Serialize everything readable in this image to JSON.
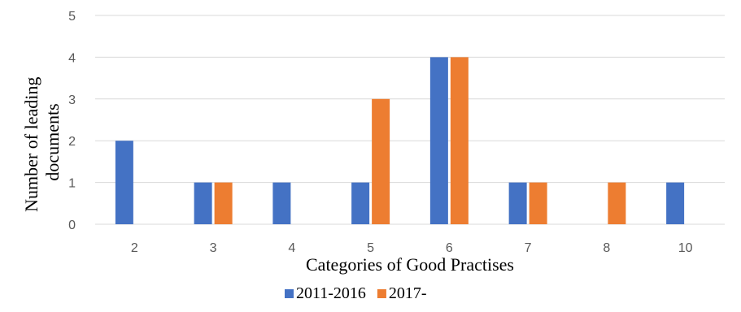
{
  "chart_data": {
    "type": "bar",
    "categories": [
      "2",
      "3",
      "4",
      "5",
      "6",
      "7",
      "8",
      "10"
    ],
    "series": [
      {
        "name": "2011-2016",
        "color": "#4472C4",
        "values": [
          2,
          1,
          1,
          1,
          4,
          1,
          0,
          1
        ]
      },
      {
        "name": "2017-",
        "color": "#ED7D31",
        "values": [
          0,
          1,
          0,
          3,
          4,
          1,
          1,
          0
        ]
      }
    ],
    "xlabel": "Categories of Good Practises",
    "ylabel": [
      "Number of leading",
      "documents"
    ],
    "ylim": [
      0,
      5
    ],
    "yticks": [
      "0",
      "1",
      "2",
      "3",
      "4",
      "5"
    ],
    "grid": true,
    "legend_position": "bottom"
  }
}
